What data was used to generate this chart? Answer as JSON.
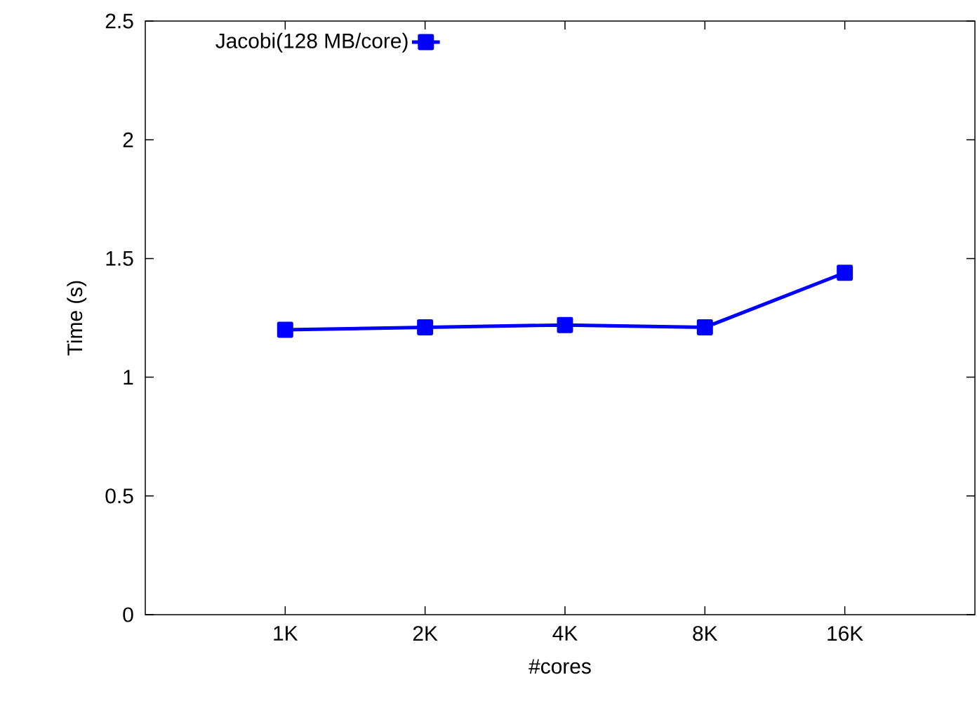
{
  "chart_data": {
    "type": "line",
    "xlabel": "#cores",
    "ylabel": "Time (s)",
    "categories": [
      "1K",
      "2K",
      "4K",
      "8K",
      "16K"
    ],
    "series": [
      {
        "name": "Jacobi(128 MB/core)",
        "color": "#0000ff",
        "values": [
          1.2,
          1.21,
          1.22,
          1.21,
          1.44
        ]
      }
    ],
    "ylim": [
      0,
      2.5
    ],
    "yticks": [
      0,
      0.5,
      1,
      1.5,
      2,
      2.5
    ],
    "legend": "top left",
    "marker": "square",
    "line_style": "solid",
    "grid": false
  }
}
